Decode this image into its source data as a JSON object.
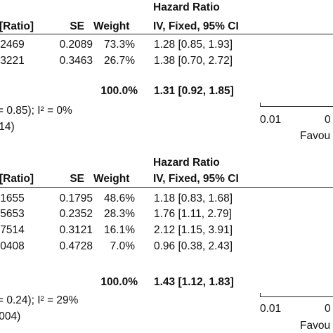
{
  "chart_data": [
    {
      "type": "forest",
      "header": {
        "ratio_col": "[Ratio]",
        "se_col": "SE",
        "weight_col": "Weight",
        "effect_title": "Hazard Ratio",
        "effect_method": "IV, Fixed, 95% CI"
      },
      "rows": [
        {
          "log_ratio": ".2469",
          "se": "0.2089",
          "weight": "73.3%",
          "ci_text": "1.28 [0.85, 1.93]"
        },
        {
          "log_ratio": ".3221",
          "se": "0.3463",
          "weight": "26.7%",
          "ci_text": "1.38 [0.70, 2.72]"
        }
      ],
      "total": {
        "weight": "100.0%",
        "ci_text": "1.31 [0.92, 1.85]"
      },
      "heterogeneity": "= 0.85); I² = 0%",
      "overall_test": ".14)",
      "axis": {
        "tick": "0.01",
        "tick_partial": "0",
        "label_partial": "Favou"
      }
    },
    {
      "type": "forest",
      "header": {
        "ratio_col": "[Ratio]",
        "se_col": "SE",
        "weight_col": "Weight",
        "effect_title": "Hazard Ratio",
        "effect_method": "IV, Fixed, 95% CI"
      },
      "rows": [
        {
          "log_ratio": ".1655",
          "se": "0.1795",
          "weight": "48.6%",
          "ci_text": "1.18 [0.83, 1.68]"
        },
        {
          "log_ratio": ".5653",
          "se": "0.2352",
          "weight": "28.3%",
          "ci_text": "1.76 [1.11, 2.79]"
        },
        {
          "log_ratio": ".7514",
          "se": "0.3121",
          "weight": "16.1%",
          "ci_text": "2.12 [1.15, 3.91]"
        },
        {
          "log_ratio": ".0408",
          "se": "0.4728",
          "weight": "7.0%",
          "ci_text": "0.96 [0.38, 2.43]"
        }
      ],
      "total": {
        "weight": "100.0%",
        "ci_text": "1.43 [1.12, 1.83]"
      },
      "heterogeneity": "= 0.24); I² = 29%",
      "overall_test": ".004)",
      "axis": {
        "tick": "0.01",
        "tick_partial": "0",
        "label_partial": "Favou"
      }
    }
  ]
}
